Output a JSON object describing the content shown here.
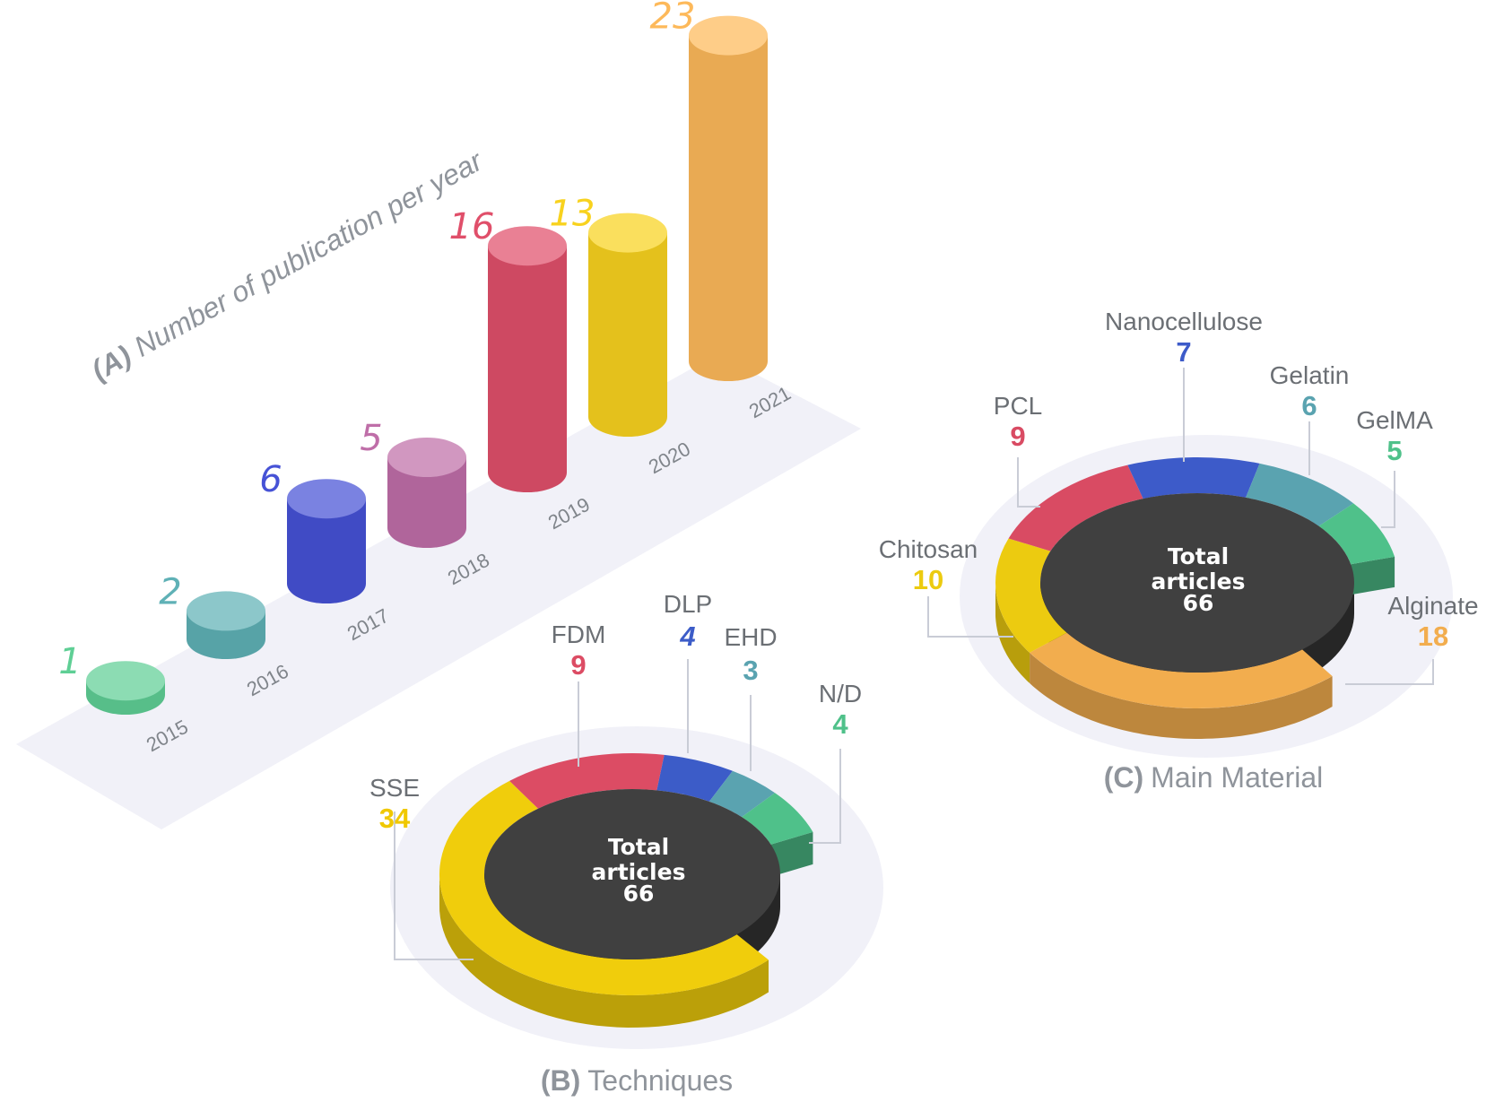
{
  "chart_data": [
    {
      "type": "bar",
      "panel": "(A)",
      "title": "Number of publication per year",
      "categories": [
        "2015",
        "2016",
        "2017",
        "2018",
        "2019",
        "2020",
        "2021"
      ],
      "values": [
        1,
        2,
        6,
        5,
        16,
        13,
        23
      ],
      "colors": [
        "#5fcf95",
        "#5fb1b6",
        "#4652d6",
        "#bf6ea8",
        "#e04f6a",
        "#f8d21e",
        "#fdb95a"
      ]
    },
    {
      "type": "pie",
      "panel": "(B)",
      "title": "Techniques",
      "center_label": [
        "Total",
        "articles",
        "66"
      ],
      "total": 66,
      "categories": [
        "SSE",
        "FDM",
        "DLP",
        "EHD",
        "N/D"
      ],
      "values": [
        34,
        9,
        4,
        3,
        4
      ],
      "colors": [
        "#f0cd0c",
        "#dc4c64",
        "#3c5cc8",
        "#5aa3b0",
        "#4fc18a"
      ]
    },
    {
      "type": "pie",
      "panel": "(C)",
      "title": "Main Material",
      "center_label": [
        "Total",
        "articles",
        "66"
      ],
      "total": 66,
      "categories": [
        "Alginate",
        "Chitosan",
        "PCL",
        "Nanocellulose",
        "Gelatin",
        "GelMA"
      ],
      "values": [
        18,
        10,
        9,
        7,
        6,
        5
      ],
      "colors": [
        "#f2ad4e",
        "#eccb10",
        "#d94b63",
        "#3d5bc9",
        "#5aa3b0",
        "#4fc18a"
      ]
    }
  ]
}
